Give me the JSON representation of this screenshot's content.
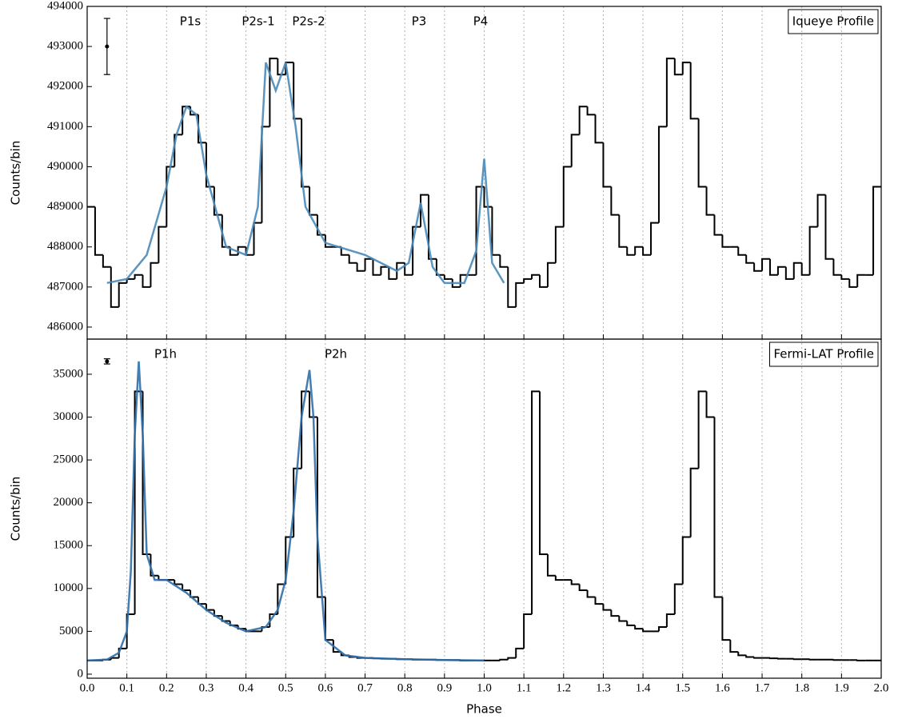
{
  "chart_data": [
    {
      "type": "histogram",
      "ylabel": "Counts/bin",
      "label": "Iqueye Profile",
      "bins": [
        0,
        0.02,
        0.04,
        0.06,
        0.08,
        0.1,
        0.12,
        0.14,
        0.16,
        0.18,
        0.2,
        0.22,
        0.24,
        0.26,
        0.28,
        0.3,
        0.32,
        0.34,
        0.36,
        0.38,
        0.4,
        0.42,
        0.44,
        0.46,
        0.48,
        0.5,
        0.52,
        0.54,
        0.56,
        0.58,
        0.6,
        0.62,
        0.64,
        0.66,
        0.68,
        0.7,
        0.72,
        0.74,
        0.76,
        0.78,
        0.8,
        0.82,
        0.84,
        0.86,
        0.88,
        0.9,
        0.92,
        0.94,
        0.96,
        0.98,
        1,
        1.02,
        1.04,
        1.06,
        1.08,
        1.1,
        1.12,
        1.14,
        1.16,
        1.18,
        1.2,
        1.22,
        1.24,
        1.26,
        1.28,
        1.3,
        1.32,
        1.34,
        1.36,
        1.38,
        1.4,
        1.42,
        1.44,
        1.46,
        1.48,
        1.5,
        1.52,
        1.54,
        1.56,
        1.58,
        1.6,
        1.62,
        1.64,
        1.66,
        1.68,
        1.7,
        1.72,
        1.74,
        1.76,
        1.78,
        1.8,
        1.82,
        1.84,
        1.86,
        1.88,
        1.9,
        1.92,
        1.94,
        1.96,
        1.98,
        2
      ],
      "values": [
        489000,
        487800,
        487500,
        486500,
        487100,
        487200,
        487300,
        487000,
        487600,
        488500,
        490000,
        490800,
        491500,
        491300,
        490600,
        489500,
        488800,
        488000,
        487800,
        488000,
        487800,
        488600,
        491000,
        492700,
        492300,
        492600,
        491200,
        489500,
        488800,
        488300,
        488000,
        488000,
        487800,
        487600,
        487400,
        487700,
        487300,
        487500,
        487200,
        487600,
        487300,
        488500,
        489300,
        487700,
        487300,
        487200,
        487000,
        487300,
        487300,
        489500,
        489000,
        487800,
        487500,
        486500,
        487100,
        487200,
        487300,
        487000,
        487600,
        488500,
        490000,
        490800,
        491500,
        491300,
        490600,
        489500,
        488800,
        488000,
        487800,
        488000,
        487800,
        488600,
        491000,
        492700,
        492300,
        492600,
        491200,
        489500,
        488800,
        488300,
        488000,
        488000,
        487800,
        487600,
        487400,
        487700,
        487300,
        487500,
        487200,
        487600,
        487300,
        488500,
        489300,
        487700,
        487300,
        487200,
        487000,
        487300,
        487300,
        489500
      ],
      "color": "#000000",
      "fit": {
        "x": [
          0.05,
          0.1,
          0.15,
          0.2,
          0.225,
          0.25,
          0.275,
          0.3,
          0.35,
          0.4,
          0.43,
          0.45,
          0.475,
          0.5,
          0.525,
          0.55,
          0.6,
          0.7,
          0.78,
          0.81,
          0.84,
          0.87,
          0.9,
          0.95,
          0.98,
          1,
          1.02,
          1.05
        ],
        "values": [
          487100,
          487200,
          487800,
          489500,
          490800,
          491500,
          491300,
          489800,
          488000,
          487800,
          489000,
          492600,
          491900,
          492600,
          491000,
          489000,
          488100,
          487800,
          487400,
          487600,
          489100,
          487500,
          487100,
          487100,
          487900,
          490200,
          487600,
          487100
        ],
        "color": "#4a8ab8"
      },
      "error_bar": {
        "x": 0.05,
        "y": 493000,
        "err": 700
      },
      "annotations": [
        "P1s",
        "P2s-1",
        "P2s-2",
        "P3",
        "P4"
      ],
      "xlim": [
        0,
        2
      ],
      "xticks": [
        {
          "value": 0,
          "label": "0.0"
        },
        0.1,
        0.2,
        0.3,
        0.4,
        0.5,
        0.6,
        0.7,
        0.8,
        0.9,
        {
          "value": 1,
          "label": "1.0"
        },
        1.1,
        1.2,
        1.3,
        1.4,
        1.5,
        1.6,
        1.7,
        1.8,
        1.9,
        {
          "value": 2,
          "label": "2.0"
        }
      ],
      "show_xticklabels": false,
      "ylim": [
        485700,
        494000
      ],
      "yticks": [
        486000,
        487000,
        488000,
        489000,
        490000,
        491000,
        492000,
        493000,
        494000
      ],
      "grid": "x"
    },
    {
      "type": "histogram",
      "ylabel": "Counts/bin",
      "xlabel": "Phase",
      "label": "Fermi-LAT Profile",
      "bins": [
        0,
        0.02,
        0.04,
        0.06,
        0.08,
        0.1,
        0.12,
        0.14,
        0.16,
        0.18,
        0.2,
        0.22,
        0.24,
        0.26,
        0.28,
        0.3,
        0.32,
        0.34,
        0.36,
        0.38,
        0.4,
        0.42,
        0.44,
        0.46,
        0.48,
        0.5,
        0.52,
        0.54,
        0.56,
        0.58,
        0.6,
        0.62,
        0.64,
        0.66,
        0.68,
        0.7,
        0.72,
        0.74,
        0.76,
        0.78,
        0.8,
        0.82,
        0.84,
        0.86,
        0.88,
        0.9,
        0.92,
        0.94,
        0.96,
        0.98,
        1,
        1.02,
        1.04,
        1.06,
        1.08,
        1.1,
        1.12,
        1.14,
        1.16,
        1.18,
        1.2,
        1.22,
        1.24,
        1.26,
        1.28,
        1.3,
        1.32,
        1.34,
        1.36,
        1.38,
        1.4,
        1.42,
        1.44,
        1.46,
        1.48,
        1.5,
        1.52,
        1.54,
        1.56,
        1.58,
        1.6,
        1.62,
        1.64,
        1.66,
        1.68,
        1.7,
        1.72,
        1.74,
        1.76,
        1.78,
        1.8,
        1.82,
        1.84,
        1.86,
        1.88,
        1.9,
        1.92,
        1.94,
        1.96,
        1.98,
        2
      ],
      "values": [
        1600,
        1600,
        1700,
        1900,
        3000,
        7000,
        33000,
        14000,
        11500,
        11000,
        11000,
        10500,
        9800,
        9000,
        8200,
        7500,
        6800,
        6200,
        5700,
        5300,
        5000,
        5000,
        5500,
        7000,
        10500,
        16000,
        24000,
        33000,
        30000,
        9000,
        4000,
        2600,
        2200,
        2000,
        1900,
        1900,
        1850,
        1800,
        1800,
        1750,
        1750,
        1700,
        1700,
        1700,
        1650,
        1650,
        1650,
        1600,
        1600,
        1600,
        1600,
        1600,
        1700,
        1900,
        3000,
        7000,
        33000,
        14000,
        11500,
        11000,
        11000,
        10500,
        9800,
        9000,
        8200,
        7500,
        6800,
        6200,
        5700,
        5300,
        5000,
        5000,
        5500,
        7000,
        10500,
        16000,
        24000,
        33000,
        30000,
        9000,
        4000,
        2600,
        2200,
        2000,
        1900,
        1900,
        1850,
        1800,
        1800,
        1750,
        1750,
        1700,
        1700,
        1700,
        1650,
        1650,
        1650,
        1600,
        1600,
        1600
      ],
      "color": "#000000",
      "fit": {
        "x": [
          0,
          0.05,
          0.08,
          0.1,
          0.11,
          0.12,
          0.13,
          0.14,
          0.15,
          0.17,
          0.2,
          0.25,
          0.3,
          0.35,
          0.4,
          0.45,
          0.48,
          0.5,
          0.52,
          0.54,
          0.56,
          0.57,
          0.58,
          0.6,
          0.65,
          0.7,
          0.8,
          0.9,
          1
        ],
        "values": [
          1600,
          1700,
          2500,
          5000,
          12000,
          28000,
          36500,
          28000,
          14000,
          11000,
          11000,
          9500,
          7500,
          6000,
          5000,
          5500,
          7500,
          11000,
          19000,
          30000,
          35500,
          30000,
          16000,
          4000,
          2200,
          1900,
          1750,
          1650,
          1600
        ],
        "color": "#2f6fa8"
      },
      "error_bar": {
        "x": 0.05,
        "y": 36500,
        "err": 300
      },
      "annotations": [
        "P1h",
        "P2h"
      ],
      "xlim": [
        0,
        2
      ],
      "xticks": [
        {
          "value": 0,
          "label": "0.0"
        },
        0.1,
        0.2,
        0.3,
        0.4,
        0.5,
        0.6,
        0.7,
        0.8,
        0.9,
        {
          "value": 1,
          "label": "1.0"
        },
        1.1,
        1.2,
        1.3,
        1.4,
        1.5,
        1.6,
        1.7,
        1.8,
        1.9,
        {
          "value": 2,
          "label": "2.0"
        }
      ],
      "show_xticklabels": true,
      "ylim": [
        -470,
        39100
      ],
      "yticks": [
        0,
        5000,
        10000,
        15000,
        20000,
        25000,
        30000,
        35000
      ],
      "grid": "x"
    }
  ]
}
